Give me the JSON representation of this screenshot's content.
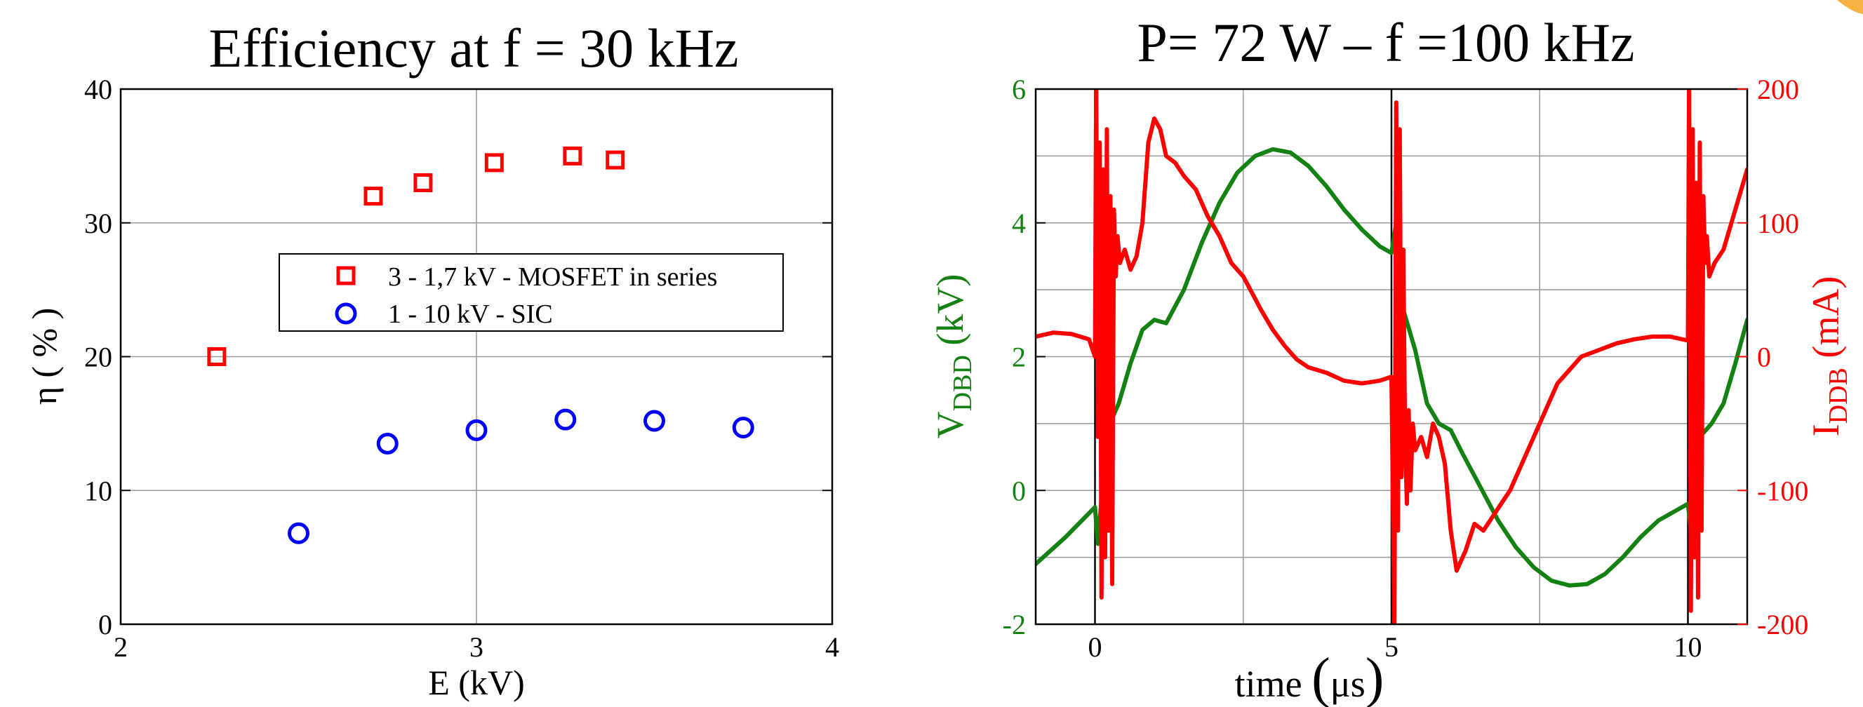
{
  "chart_data": [
    {
      "type": "scatter",
      "title": "Efficiency at f = 30 kHz",
      "xlabel": "E (kV)",
      "ylabel": "η ( % )",
      "xlim": [
        2,
        4
      ],
      "ylim": [
        0,
        40
      ],
      "xticks": [
        2,
        3,
        4
      ],
      "yticks": [
        0,
        10,
        20,
        30,
        40
      ],
      "grid": true,
      "legend_position": "center-right",
      "series": [
        {
          "name": "3 - 1,7 kV - MOSFET in series",
          "marker": "square",
          "color": "#ff0000",
          "x": [
            2.27,
            2.71,
            2.85,
            3.05,
            3.27,
            3.39
          ],
          "y": [
            20.0,
            32.0,
            33.0,
            34.5,
            35.0,
            34.7
          ]
        },
        {
          "name": "1 - 10 kV - SIC",
          "marker": "circle",
          "color": "#0000ff",
          "x": [
            2.5,
            2.75,
            3.0,
            3.25,
            3.5,
            3.75
          ],
          "y": [
            6.8,
            13.5,
            14.5,
            15.3,
            15.2,
            14.7
          ]
        }
      ]
    },
    {
      "type": "line",
      "title": "P= 72 W – f =100 kHz",
      "xlabel": "time (μs)",
      "ylabel_left": "V_DBD (kV)",
      "ylabel_right": "I_DDB (mA)",
      "xlim": [
        -1,
        11
      ],
      "ylim_left": [
        -2,
        6
      ],
      "ylim_right": [
        -200,
        200
      ],
      "xticks": [
        0,
        5,
        10
      ],
      "yticks_left": [
        -2,
        0,
        2,
        4,
        6
      ],
      "yticks_right": [
        -200,
        -100,
        0,
        100,
        200
      ],
      "grid": true,
      "series": [
        {
          "name": "V_DBD",
          "axis": "left",
          "color": "#138213",
          "x": [
            -1.0,
            -0.5,
            0.0,
            0.05,
            0.2,
            0.4,
            0.6,
            0.8,
            1.0,
            1.2,
            1.5,
            1.8,
            2.1,
            2.4,
            2.7,
            3.0,
            3.3,
            3.6,
            3.9,
            4.2,
            4.5,
            4.8,
            5.0,
            5.08,
            5.2,
            5.4,
            5.6,
            5.8,
            6.0,
            6.2,
            6.5,
            6.8,
            7.1,
            7.4,
            7.7,
            8.0,
            8.3,
            8.6,
            8.9,
            9.2,
            9.5,
            9.8,
            10.0,
            10.05,
            10.2,
            10.4,
            10.6,
            10.8,
            11.0
          ],
          "y": [
            -1.1,
            -0.7,
            -0.25,
            -0.8,
            0.9,
            1.3,
            1.9,
            2.4,
            2.55,
            2.5,
            3.0,
            3.7,
            4.3,
            4.75,
            5.0,
            5.1,
            5.05,
            4.85,
            4.55,
            4.2,
            3.9,
            3.65,
            3.55,
            4.0,
            2.7,
            2.1,
            1.3,
            1.0,
            0.9,
            0.55,
            0.05,
            -0.45,
            -0.85,
            -1.15,
            -1.35,
            -1.42,
            -1.4,
            -1.25,
            -1.0,
            -0.7,
            -0.45,
            -0.3,
            -0.2,
            -0.6,
            0.8,
            1.0,
            1.3,
            1.9,
            2.55
          ]
        },
        {
          "name": "I_DDB",
          "axis": "right",
          "color": "#ff0000",
          "x": [
            -1.0,
            -0.7,
            -0.4,
            -0.1,
            0.0,
            0.02,
            0.05,
            0.08,
            0.11,
            0.14,
            0.17,
            0.2,
            0.23,
            0.26,
            0.29,
            0.32,
            0.35,
            0.38,
            0.42,
            0.5,
            0.6,
            0.7,
            0.8,
            0.9,
            1.0,
            1.1,
            1.2,
            1.35,
            1.5,
            1.7,
            1.9,
            2.1,
            2.3,
            2.5,
            2.8,
            3.0,
            3.2,
            3.4,
            3.6,
            3.9,
            4.2,
            4.5,
            4.8,
            5.0,
            5.05,
            5.08,
            5.11,
            5.14,
            5.17,
            5.2,
            5.23,
            5.26,
            5.29,
            5.32,
            5.36,
            5.4,
            5.5,
            5.6,
            5.7,
            5.8,
            5.9,
            6.0,
            6.1,
            6.25,
            6.4,
            6.55,
            6.7,
            6.85,
            7.0,
            7.2,
            7.4,
            7.6,
            7.8,
            8.0,
            8.2,
            8.5,
            8.8,
            9.1,
            9.4,
            9.7,
            10.0,
            10.02,
            10.05,
            10.08,
            10.11,
            10.14,
            10.17,
            10.2,
            10.23,
            10.26,
            10.29,
            10.32,
            10.36,
            10.45,
            10.6,
            10.8,
            11.0
          ],
          "y": [
            15,
            18,
            17,
            13,
            0,
            210,
            -60,
            160,
            -180,
            140,
            -150,
            170,
            -130,
            120,
            -170,
            110,
            60,
            90,
            70,
            80,
            65,
            75,
            100,
            160,
            178,
            170,
            150,
            145,
            135,
            125,
            105,
            90,
            70,
            60,
            35,
            20,
            8,
            -2,
            -8,
            -12,
            -18,
            -20,
            -18,
            -15,
            -200,
            190,
            -130,
            170,
            -90,
            80,
            -60,
            -110,
            -40,
            -100,
            -50,
            -70,
            -60,
            -75,
            -50,
            -60,
            -80,
            -130,
            -160,
            -145,
            -125,
            -130,
            -120,
            -110,
            -100,
            -80,
            -60,
            -40,
            -20,
            -10,
            0,
            5,
            10,
            13,
            15,
            15,
            12,
            210,
            -190,
            170,
            -150,
            130,
            -180,
            160,
            -130,
            120,
            70,
            90,
            60,
            70,
            80,
            110,
            140
          ]
        }
      ]
    }
  ]
}
